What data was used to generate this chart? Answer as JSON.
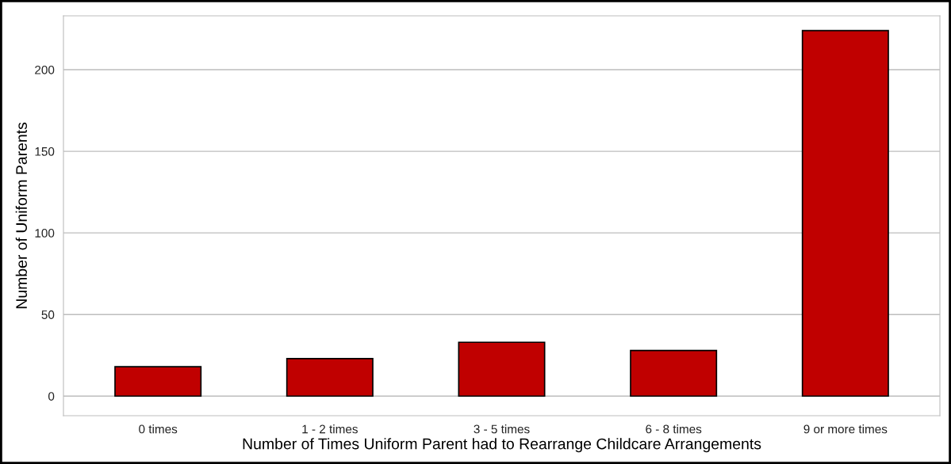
{
  "chart_data": {
    "type": "bar",
    "xlabel": "Number of Times Uniform Parent had to Rearrange Childcare Arrangements",
    "ylabel": "Number of Uniform Parents",
    "categories": [
      "0 times",
      "1 - 2 times",
      "3 - 5 times",
      "6 - 8 times",
      "9 or more times"
    ],
    "values": [
      18,
      23,
      33,
      28,
      224
    ],
    "color": "#c00000",
    "ylim": [
      -12,
      233
    ],
    "yticks": [
      0,
      50,
      100,
      150,
      200
    ],
    "grid": "y"
  }
}
